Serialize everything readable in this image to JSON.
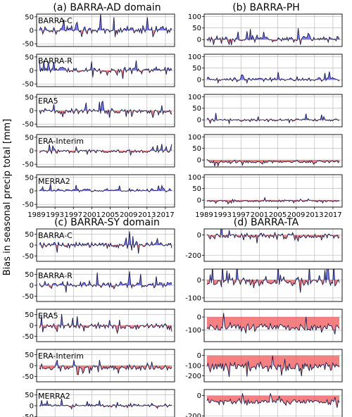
{
  "figure": {
    "ylabel": "Bias in seasonal precip total [mm]",
    "colors": {
      "positive": "#5b5bf0",
      "negative": "#f06262",
      "line": "#1a1a4d",
      "grid": "#b0b0b0"
    }
  },
  "chart_data": [
    {
      "type": "area",
      "panel_title": "(a) BARRA-AD domain",
      "x_ticks": [
        "1989",
        "1993",
        "1997",
        "2001",
        "2005",
        "2009",
        "2013",
        "2017"
      ],
      "x_range": [
        1989,
        2019
      ],
      "subplots": [
        {
          "label": "BARRA-C",
          "ylim": [
            -60,
            60
          ],
          "yticks": [
            -50,
            0,
            50
          ],
          "amp": 25,
          "bias": 2
        },
        {
          "label": "BARRA-R",
          "ylim": [
            -60,
            60
          ],
          "yticks": [
            -50,
            0,
            50
          ],
          "amp": 22,
          "bias": 1
        },
        {
          "label": "ERA5",
          "ylim": [
            -60,
            60
          ],
          "yticks": [
            -50,
            0,
            50
          ],
          "amp": 18,
          "bias": -3
        },
        {
          "label": "ERA-Interim",
          "ylim": [
            -60,
            60
          ],
          "yticks": [
            -50,
            0,
            50
          ],
          "amp": 12,
          "bias": -2
        },
        {
          "label": "MERRA2",
          "ylim": [
            -60,
            60
          ],
          "yticks": [
            -50,
            0,
            50
          ],
          "amp": 10,
          "bias": 2
        }
      ]
    },
    {
      "type": "area",
      "panel_title": "(b) BARRA-PH",
      "x_ticks": [
        "1989",
        "1993",
        "1997",
        "2001",
        "2005",
        "2009",
        "2013",
        "2017"
      ],
      "x_range": [
        1989,
        2019
      ],
      "subplots": [
        {
          "label": "",
          "ylim": [
            -30,
            110
          ],
          "yticks": [
            0,
            50,
            100
          ],
          "amp": 20,
          "bias": 3
        },
        {
          "label": "",
          "ylim": [
            -30,
            110
          ],
          "yticks": [
            0,
            50,
            100
          ],
          "amp": 15,
          "bias": 2
        },
        {
          "label": "",
          "ylim": [
            -30,
            110
          ],
          "yticks": [
            0,
            50,
            100
          ],
          "amp": 12,
          "bias": 0
        },
        {
          "label": "",
          "ylim": [
            -30,
            110
          ],
          "yticks": [
            0,
            50,
            100
          ],
          "amp": 12,
          "bias": -8
        },
        {
          "label": "",
          "ylim": [
            -30,
            110
          ],
          "yticks": [
            0,
            50,
            100
          ],
          "amp": 8,
          "bias": -4
        }
      ]
    },
    {
      "type": "area",
      "panel_title": "(c) BARRA-SY domain",
      "x_ticks": [
        "1989",
        "1993",
        "1997",
        "2001",
        "2005",
        "2009",
        "2013",
        "2017"
      ],
      "x_range": [
        1989,
        2019
      ],
      "subplots": [
        {
          "label": "BARRA-C",
          "ylim": [
            -75,
            75
          ],
          "yticks": [
            -50,
            0,
            50
          ],
          "amp": 30,
          "bias": 3
        },
        {
          "label": "BARRA-R",
          "ylim": [
            -75,
            75
          ],
          "yticks": [
            -50,
            0,
            50
          ],
          "amp": 28,
          "bias": 2
        },
        {
          "label": "ERA5",
          "ylim": [
            -75,
            75
          ],
          "yticks": [
            -50,
            0,
            50
          ],
          "amp": 24,
          "bias": -5
        },
        {
          "label": "ERA-Interim",
          "ylim": [
            -75,
            75
          ],
          "yticks": [
            -50,
            0,
            50
          ],
          "amp": 22,
          "bias": -10
        },
        {
          "label": "MERRA2",
          "ylim": [
            -75,
            75
          ],
          "yticks": [
            -50,
            0,
            50
          ],
          "amp": 14,
          "bias": 0
        }
      ]
    },
    {
      "type": "area",
      "panel_title": "(d) BARRA-TA",
      "x_ticks": [
        "1989",
        "1993",
        "1997",
        "2001",
        "2005",
        "2009",
        "2013",
        "2017"
      ],
      "x_range": [
        1989,
        2019
      ],
      "subplots": [
        {
          "label": "",
          "ylim": [
            -260,
            60
          ],
          "yticks": [
            -200,
            0
          ],
          "amp": 55,
          "bias": -10
        },
        {
          "label": "",
          "ylim": [
            -120,
            60
          ],
          "yticks": [
            -100,
            0
          ],
          "amp": 45,
          "bias": -10
        },
        {
          "label": "",
          "ylim": [
            -190,
            60
          ],
          "yticks": [
            -100,
            0
          ],
          "amp": 60,
          "bias": -80
        },
        {
          "label": "",
          "ylim": [
            -260,
            60
          ],
          "yticks": [
            -200,
            -100,
            0
          ],
          "amp": 80,
          "bias": -110
        },
        {
          "label": "",
          "ylim": [
            -260,
            60
          ],
          "yticks": [
            -200,
            0
          ],
          "amp": 50,
          "bias": -60
        }
      ]
    }
  ]
}
